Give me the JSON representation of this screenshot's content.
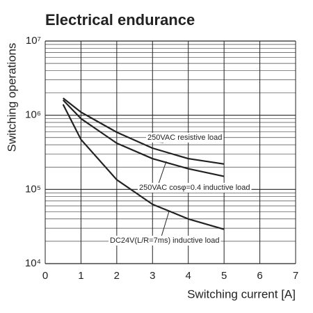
{
  "chart_data": {
    "type": "line",
    "title": "Electrical endurance",
    "xlabel": "Switching current [A]",
    "ylabel": "Switching operations",
    "x": [
      0.5,
      1,
      2,
      3,
      4,
      5
    ],
    "series": [
      {
        "name": "250VAC resistive load",
        "color": "#222222",
        "values": [
          1700000,
          1100000,
          590000,
          360000,
          260000,
          220000
        ]
      },
      {
        "name": "250VAC cosφ=0.4 inductive load",
        "color": "#222222",
        "values": [
          1600000,
          900000,
          420000,
          260000,
          190000,
          150000
        ]
      },
      {
        "name": "DC24V(L/R=7ms) inductive load",
        "color": "#222222",
        "values": [
          1400000,
          470000,
          135000,
          63000,
          40000,
          29000
        ]
      }
    ],
    "xlim": [
      0,
      7
    ],
    "xticks": [
      0,
      1,
      2,
      3,
      4,
      5,
      6,
      7
    ],
    "ylim": [
      10000,
      10000000
    ],
    "log_y": true,
    "yticks": [
      {
        "value": 10000,
        "label": "10⁴"
      },
      {
        "value": 100000,
        "label": "10⁵"
      },
      {
        "value": 1000000,
        "label": "10⁶"
      },
      {
        "value": 10000000,
        "label": "10⁷"
      }
    ],
    "grid": true
  }
}
